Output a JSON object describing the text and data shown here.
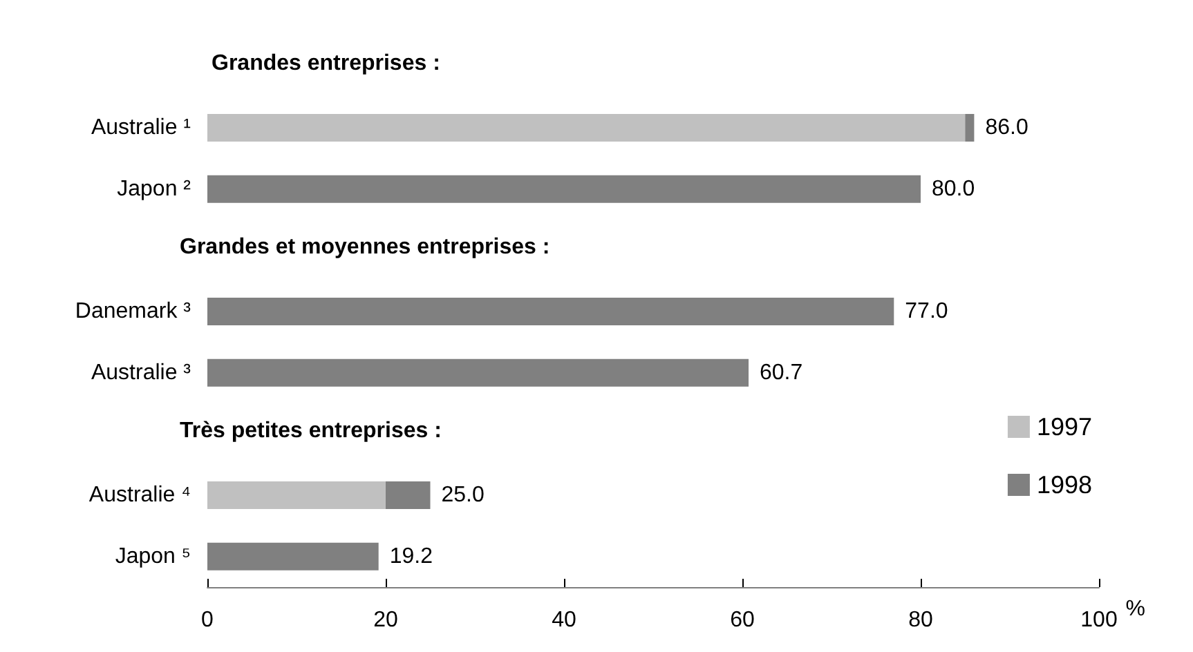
{
  "chart_data": {
    "type": "bar",
    "orientation": "horizontal",
    "xlabel": "%",
    "categories": [
      null,
      "Australie ¹",
      "Japon ²",
      null,
      "Danemark ³",
      "Australie ³",
      null,
      "Australie ⁴",
      "Japon ⁵"
    ],
    "annotations": [
      "Grandes entreprises :",
      "Grandes et moyennes entreprises :",
      "Très petites entreprises :"
    ],
    "series": [
      {
        "name": "1997",
        "color": "#c0c0c0",
        "values": [
          null,
          85,
          null,
          null,
          null,
          null,
          null,
          20,
          null
        ]
      },
      {
        "name": "1998",
        "color": "#808080",
        "values": [
          null,
          86.0,
          80.0,
          null,
          77.0,
          60.7,
          null,
          25.0,
          19.2
        ],
        "value_labels": [
          null,
          "86.0",
          "80.0",
          null,
          "77.0",
          "60.7",
          null,
          "25.0",
          "19.2"
        ]
      }
    ],
    "xlim": [
      0,
      100
    ],
    "xticks": [
      0,
      20,
      40,
      60,
      80,
      100
    ],
    "grid": false,
    "legend": "right"
  }
}
